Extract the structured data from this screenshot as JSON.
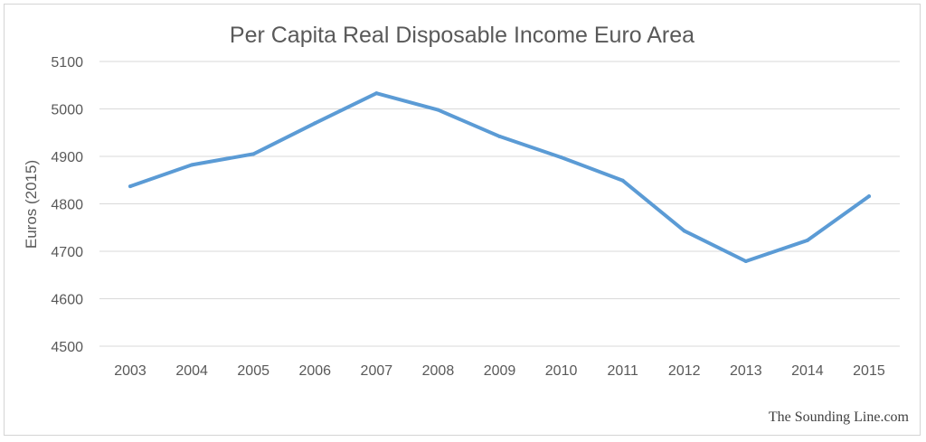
{
  "chart_data": {
    "type": "line",
    "title": "Per Capita Real Disposable Income Euro Area",
    "xlabel": "",
    "ylabel": "Euros (2015)",
    "categories": [
      "2003",
      "2004",
      "2005",
      "2006",
      "2007",
      "2008",
      "2009",
      "2010",
      "2011",
      "2012",
      "2013",
      "2014",
      "2015"
    ],
    "series": [
      {
        "values": [
          4837,
          4882,
          4905,
          4970,
          5033,
          4998,
          4942,
          4898,
          4849,
          4743,
          4679,
          4723,
          4816
        ]
      }
    ],
    "ylim": [
      4500,
      5100
    ],
    "yticks": [
      4500,
      4600,
      4700,
      4800,
      4900,
      5000,
      5100
    ],
    "grid": true,
    "legend": "none",
    "colors": {
      "series": "#5b9bd5",
      "grid": "#d9d9d9",
      "text": "#595959"
    }
  },
  "credit": "The Sounding Line.com"
}
